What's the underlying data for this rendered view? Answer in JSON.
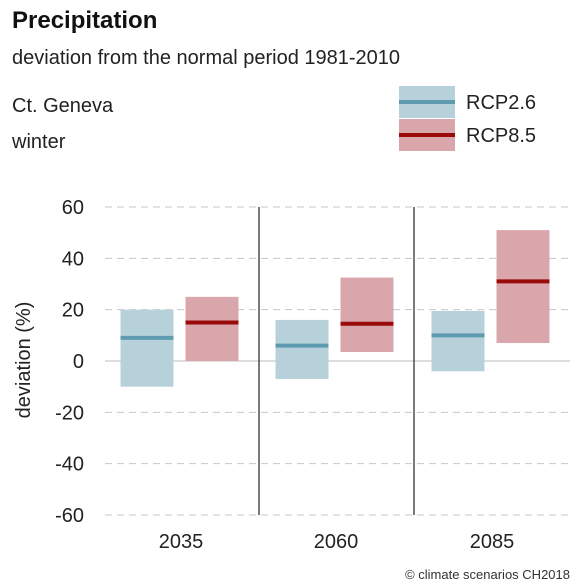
{
  "chart_data": {
    "type": "box",
    "title": "Precipitation",
    "subtitle": "deviation from the normal period 1981-2010",
    "region": "Ct. Geneva",
    "season": "winter",
    "ylabel": "deviation (%)",
    "ylim": [
      -60,
      60
    ],
    "yticks": [
      -60,
      -40,
      -20,
      0,
      20,
      40,
      60
    ],
    "categories": [
      "2035",
      "2060",
      "2085"
    ],
    "series": [
      {
        "name": "RCP2.6",
        "band_color": "#b7d1da",
        "line_color": "#5f9bb0",
        "low": [
          -10,
          -7,
          -4
        ],
        "median": [
          9,
          6,
          10
        ],
        "high": [
          20,
          16,
          19.5
        ]
      },
      {
        "name": "RCP8.5",
        "band_color": "#d9a7ab",
        "line_color": "#9b0a0a",
        "low": [
          0,
          3.5,
          7
        ],
        "median": [
          15,
          14.5,
          31
        ],
        "high": [
          25,
          32.5,
          51
        ]
      }
    ],
    "grid": true,
    "legend": "top-right",
    "credit": "© climate scenarios CH2018"
  }
}
